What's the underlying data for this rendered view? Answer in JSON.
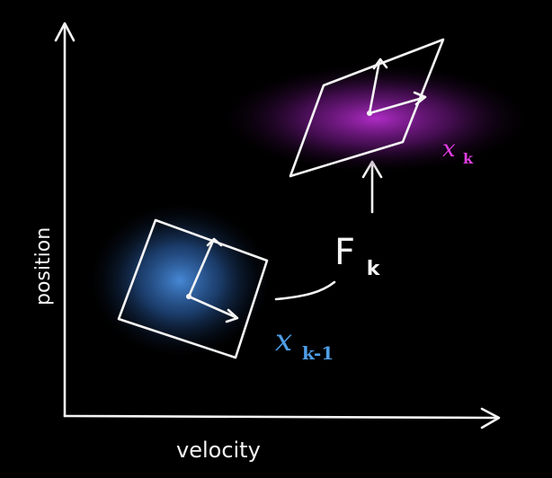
{
  "axes": {
    "x_label": "velocity",
    "y_label": "position"
  },
  "prev_state": {
    "symbol": "x",
    "subscript": "k-1",
    "color": "#4f9ee8",
    "glow": "#3a7fd0"
  },
  "next_state": {
    "symbol": "x",
    "subscript": "k",
    "color": "#e03ee0",
    "glow": "#a020c0"
  },
  "transition": {
    "symbol": "F",
    "subscript": "k"
  },
  "colors": {
    "background": "#000000",
    "chalk": "#f4f4f4"
  }
}
